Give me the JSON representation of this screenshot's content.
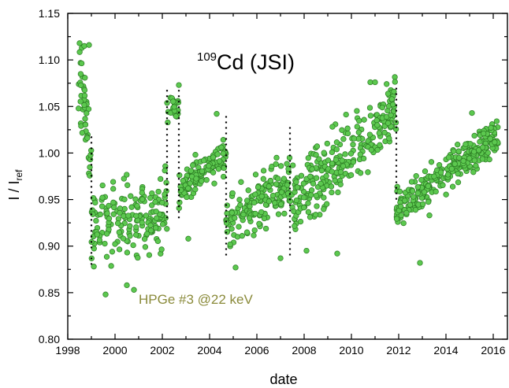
{
  "chart_data": {
    "type": "scatter",
    "xlabel": "date",
    "ylabel": {
      "main": "I / I",
      "subscript": "ref"
    },
    "xlim": [
      1998,
      2016.6
    ],
    "ylim": [
      0.8,
      1.15
    ],
    "x_ticks": [
      "1998",
      "2000",
      "2002",
      "2004",
      "2006",
      "2008",
      "2010",
      "2012",
      "2014",
      "2016"
    ],
    "y_ticks": [
      "0.80",
      "0.85",
      "0.90",
      "0.95",
      "1.00",
      "1.05",
      "1.10",
      "1.15"
    ],
    "grid": false,
    "legend": "none",
    "annotations": {
      "isotope_mass": "109",
      "title_rest": "Cd (JSI)",
      "detector": "HPGe #3 @22 keV"
    },
    "colors": {
      "marker_fill": "#5cc84f",
      "marker_stroke": "#2a7a22",
      "detector_label": "#8a8a3a",
      "break_lines": "#000000"
    },
    "calibration_breaks": [
      {
        "date": 1999.0,
        "y_from": 0.88,
        "y_to": 1.02
      },
      {
        "date": 2002.2,
        "y_from": 0.93,
        "y_to": 1.07
      },
      {
        "date": 2002.7,
        "y_from": 0.93,
        "y_to": 1.07
      },
      {
        "date": 2004.7,
        "y_from": 0.89,
        "y_to": 1.04
      },
      {
        "date": 2007.4,
        "y_from": 0.89,
        "y_to": 1.03
      },
      {
        "date": 2011.9,
        "y_from": 0.95,
        "y_to": 1.07
      }
    ],
    "series": [
      {
        "segments": [
          {
            "x_range": [
              1998.4,
              1999.0
            ],
            "trend": [
              1.09,
              1.0
            ],
            "spread": 0.045,
            "density": 75
          },
          {
            "x_range": [
              1999.0,
              2002.2
            ],
            "trend": [
              0.92,
              0.94
            ],
            "spread": 0.04,
            "density": 55
          },
          {
            "x_range": [
              2002.2,
              2002.7
            ],
            "trend": [
              1.05,
              1.05
            ],
            "spread": 0.015,
            "density": 45
          },
          {
            "x_range": [
              2002.7,
              2004.7
            ],
            "trend": [
              0.96,
              1.0
            ],
            "spread": 0.018,
            "density": 60
          },
          {
            "x_range": [
              2004.7,
              2007.4
            ],
            "trend": [
              0.92,
              0.97
            ],
            "spread": 0.03,
            "density": 60
          },
          {
            "x_range": [
              2007.4,
              2011.9
            ],
            "trend": [
              0.94,
              1.05
            ],
            "spread": 0.035,
            "density": 60
          },
          {
            "x_range": [
              2011.9,
              2016.2
            ],
            "trend": [
              0.94,
              1.02
            ],
            "spread": 0.02,
            "density": 65
          }
        ],
        "outliers": [
          [
            1998.5,
            1.118
          ],
          [
            1998.7,
            1.115
          ],
          [
            1998.9,
            1.116
          ],
          [
            1999.6,
            0.848
          ],
          [
            2000.5,
            0.858
          ],
          [
            2000.8,
            0.853
          ],
          [
            2002.7,
            1.073
          ],
          [
            2004.3,
            1.042
          ],
          [
            2003.1,
            0.908
          ],
          [
            2005.1,
            0.877
          ],
          [
            2007.0,
            0.887
          ],
          [
            2008.1,
            0.895
          ],
          [
            2009.4,
            0.892
          ],
          [
            2010.8,
            1.076
          ],
          [
            2011.0,
            1.076
          ],
          [
            2012.9,
            0.882
          ],
          [
            2013.3,
            0.933
          ],
          [
            2015.1,
            1.043
          ]
        ]
      }
    ]
  }
}
